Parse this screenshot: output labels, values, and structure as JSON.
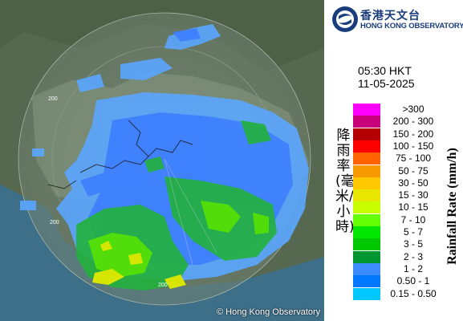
{
  "radar_map": {
    "copyright": "© Hong Kong Observatory",
    "range_rings": [
      "200",
      "200",
      "200"
    ]
  },
  "header": {
    "logo_zh": "香港天文台",
    "logo_en": "HONG KONG OBSERVATORY",
    "time": "05:30 HKT",
    "date": "11-05-2025"
  },
  "legend": {
    "title_zh": "降雨率(毫米/小時)",
    "title_en": "Rainfall Rate (mm/h)",
    "items": [
      {
        "label": ">300",
        "color": "#ff00ff"
      },
      {
        "label": "200 - 300",
        "color": "#c8007a"
      },
      {
        "label": "150 - 200",
        "color": "#b40000"
      },
      {
        "label": "100 - 150",
        "color": "#ff0000"
      },
      {
        "label": "75 - 100",
        "color": "#ff6400"
      },
      {
        "label": "50 - 75",
        "color": "#f79900"
      },
      {
        "label": "30 - 50",
        "color": "#ffc800"
      },
      {
        "label": "15 - 30",
        "color": "#e6e600"
      },
      {
        "label": "10 - 15",
        "color": "#c8ff00"
      },
      {
        "label": "7 - 10",
        "color": "#64ff00"
      },
      {
        "label": "5 - 7",
        "color": "#00e600"
      },
      {
        "label": "3 - 5",
        "color": "#00c800"
      },
      {
        "label": "2 - 3",
        "color": "#009632"
      },
      {
        "label": "1 - 2",
        "color": "#3c8cff"
      },
      {
        "label": "0.50 - 1",
        "color": "#0078ff"
      },
      {
        "label": "0.15 - 0.50",
        "color": "#00c8ff"
      }
    ]
  }
}
